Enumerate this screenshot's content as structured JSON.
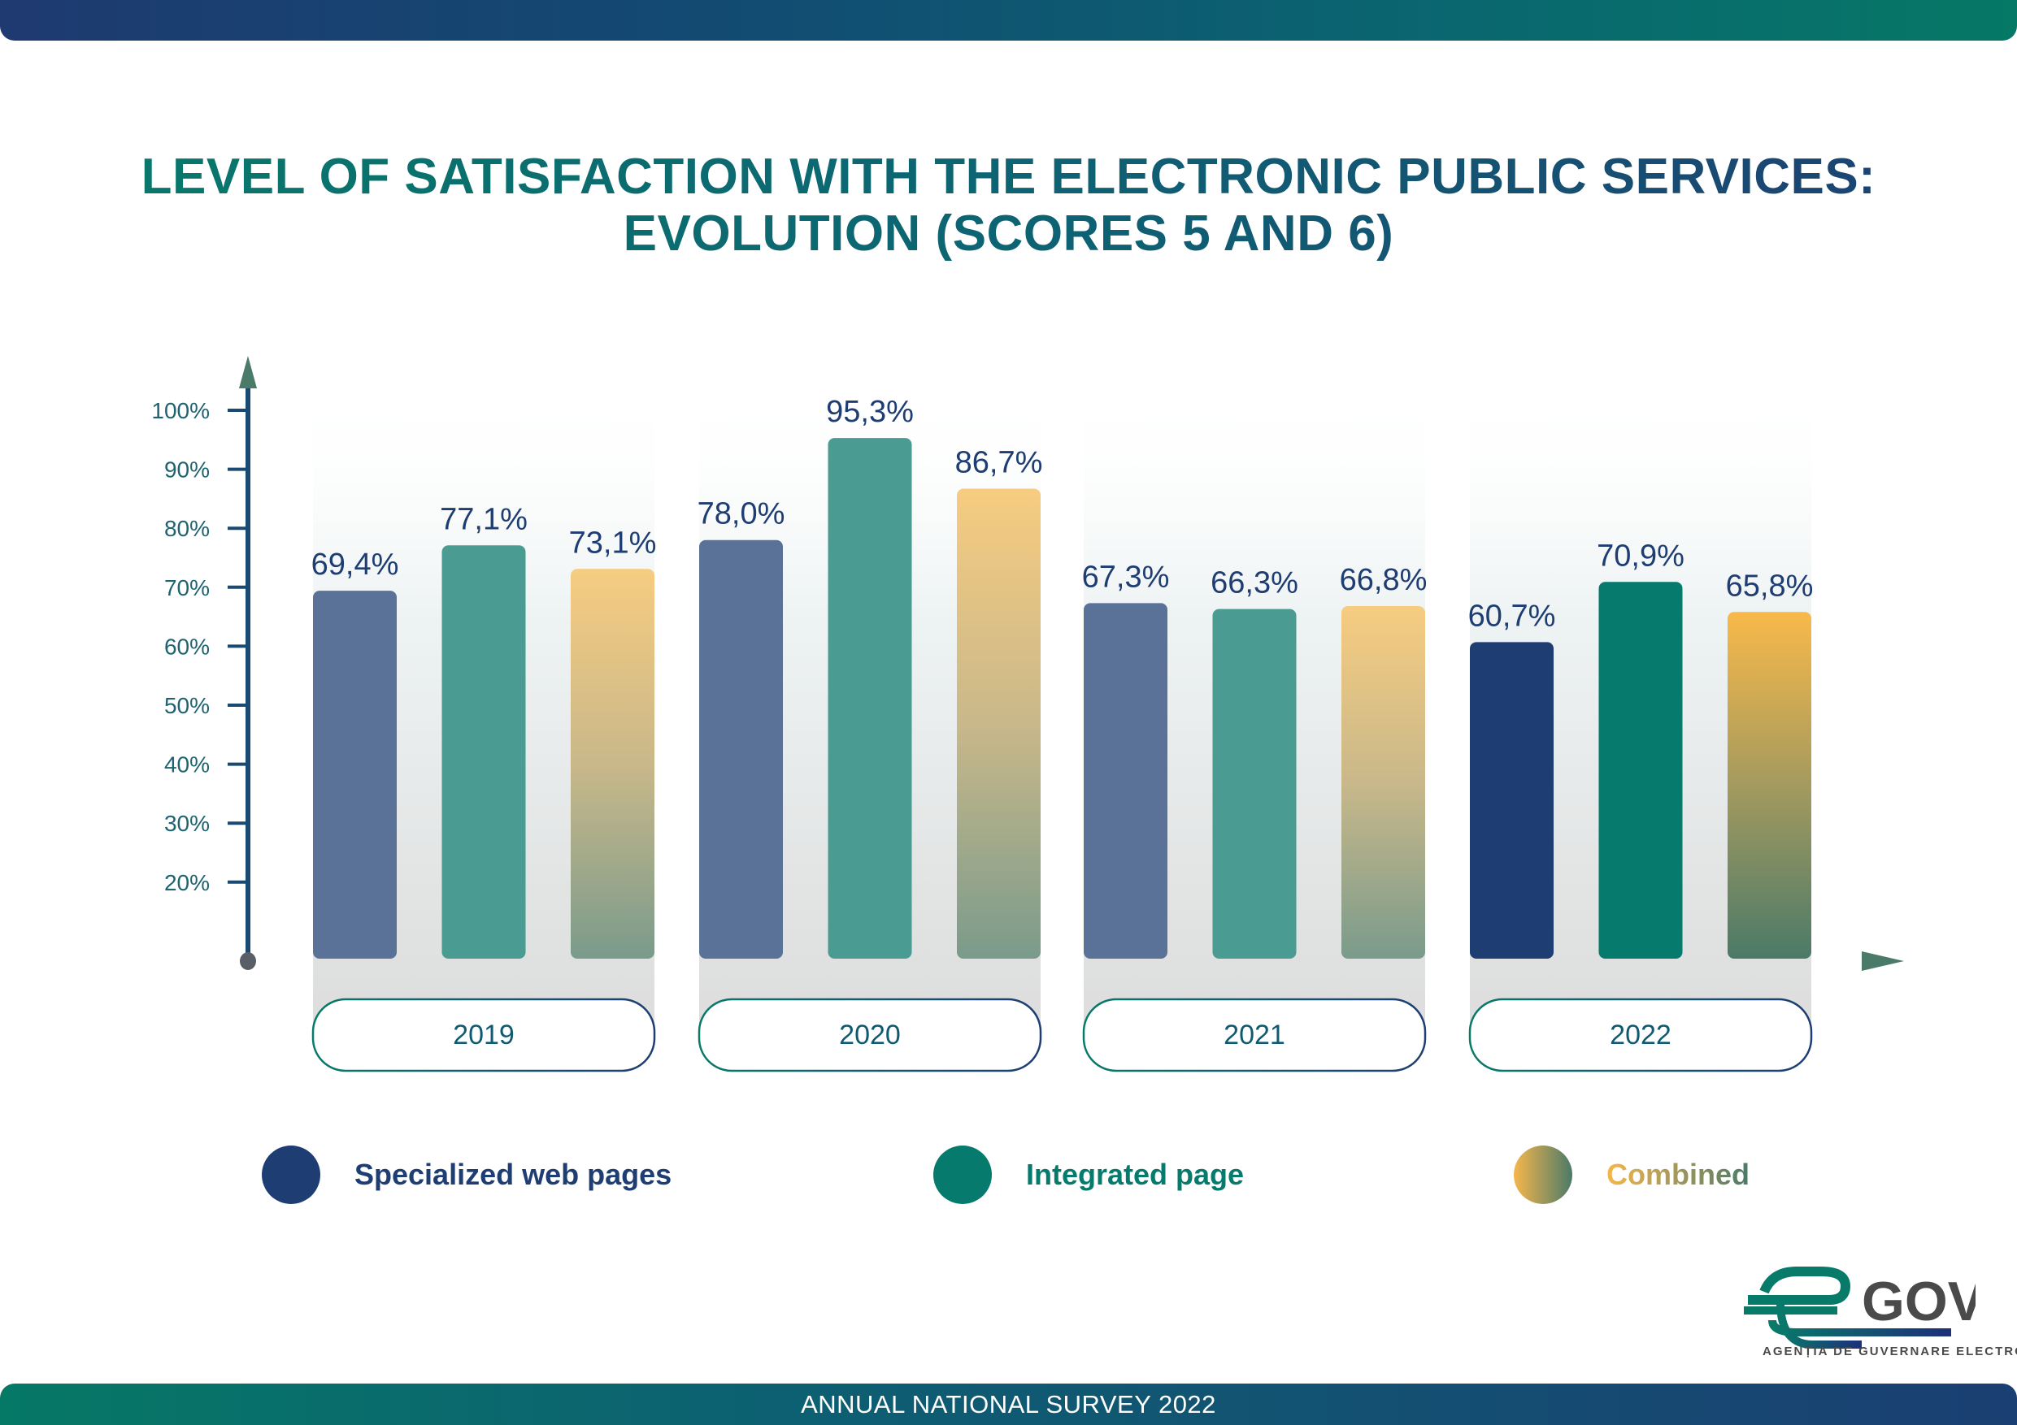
{
  "header": {
    "title_line1": "LEVEL OF SATISFACTION WITH THE ELECTRONIC PUBLIC SERVICES:",
    "title_line2": "EVOLUTION (SCORES 5 AND 6)"
  },
  "footer": {
    "text": "ANNUAL NATIONAL SURVEY 2022"
  },
  "logo": {
    "wordmark": "GOV",
    "caption": "AGENȚIA DE GUVERNARE ELECTRONICĂ",
    "icon": "egov-e-logo-icon"
  },
  "colors": {
    "specialized": "#5a7198",
    "specialized_highlight": "#1e3d73",
    "integrated": "#4a9b92",
    "integrated_highlight": "#067a6c",
    "combined_top": "#f5cb7f",
    "combined_bottom": "#7a9a8a",
    "combined_highlight_top": "#f8b94a",
    "combined_highlight_bottom": "#4b7a68",
    "label_text": "#1e3d73",
    "axis": "#1a4a72",
    "axis_arrow": "#4a7a68"
  },
  "chart_data": {
    "type": "bar",
    "title": "LEVEL OF SATISFACTION WITH THE ELECTRONIC PUBLIC SERVICES: EVOLUTION (SCORES 5 AND 6)",
    "xlabel": "",
    "ylabel": "",
    "categories": [
      "2019",
      "2020",
      "2021",
      "2022"
    ],
    "series": [
      {
        "name": "Specialized web pages",
        "values": [
          69.4,
          78.0,
          67.3,
          60.7
        ],
        "labels": [
          "69,4%",
          "78,0%",
          "67,3%",
          "60,7%"
        ]
      },
      {
        "name": "Integrated page",
        "values": [
          77.1,
          95.3,
          66.3,
          70.9
        ],
        "labels": [
          "77,1%",
          "95,3%",
          "66,3%",
          "70,9%"
        ]
      },
      {
        "name": "Combined",
        "values": [
          73.1,
          86.7,
          66.8,
          65.8
        ],
        "labels": [
          "73,1%",
          "86,7%",
          "66,8%",
          "65,8%"
        ]
      }
    ],
    "yticks": [
      "20%",
      "30%",
      "40%",
      "50%",
      "60%",
      "70%",
      "80%",
      "90%",
      "100%"
    ],
    "ytick_values": [
      20,
      30,
      40,
      50,
      60,
      70,
      80,
      90,
      100
    ],
    "ylim": [
      0,
      100
    ],
    "grid": false,
    "legend_position": "bottom",
    "highlighted_category": "2022"
  },
  "legend": [
    {
      "label": "Specialized web pages"
    },
    {
      "label": "Integrated page"
    },
    {
      "label": "Combined"
    }
  ]
}
